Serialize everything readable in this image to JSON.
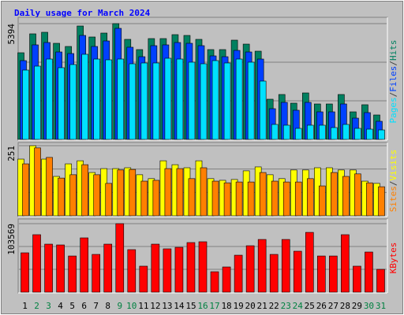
{
  "chart_data": [
    {
      "type": "bar",
      "title": "Daily usage for March 2024",
      "legend_separator": "/",
      "ylim": [
        0,
        5394
      ],
      "yticks": [
        5394
      ],
      "series": [
        {
          "name": "Hits",
          "color": "#008060",
          "values": [
            4037,
            4918,
            4991,
            4477,
            4330,
            5284,
            4771,
            4954,
            5394,
            4661,
            4184,
            4697,
            4697,
            4881,
            4844,
            4661,
            4184,
            4184,
            4624,
            4440,
            4110,
            1872,
            2092,
            1688,
            2165,
            1651,
            1651,
            2092,
            1284,
            1615,
            1138
          ]
        },
        {
          "name": "Files",
          "color": "#0040ff",
          "values": [
            3670,
            4404,
            4514,
            4073,
            4000,
            4844,
            4330,
            4587,
            5174,
            4294,
            3853,
            4367,
            4404,
            4514,
            4477,
            4367,
            3890,
            3853,
            4147,
            4073,
            3743,
            1431,
            1725,
            1358,
            1725,
            1284,
            1284,
            1651,
            991,
            1248,
            844
          ]
        },
        {
          "name": "Pages",
          "color": "#00e0ff",
          "values": [
            3229,
            3413,
            3743,
            3340,
            3487,
            3964,
            3743,
            3707,
            3743,
            3523,
            3560,
            3560,
            3780,
            3743,
            3597,
            3523,
            3670,
            3560,
            3743,
            3597,
            2716,
            697,
            661,
            514,
            661,
            661,
            551,
            697,
            514,
            477,
            440
          ]
        }
      ]
    },
    {
      "type": "bar",
      "legend_separator": "/",
      "ylim": [
        0,
        251
      ],
      "yticks": [
        251
      ],
      "series": [
        {
          "name": "Visits",
          "color": "#ffff00",
          "values": [
            203,
            251,
            203,
            141,
            186,
            197,
            155,
            169,
            169,
            172,
            147,
            133,
            197,
            183,
            172,
            197,
            133,
            127,
            130,
            161,
            175,
            147,
            133,
            164,
            164,
            172,
            172,
            164,
            164,
            124,
            116
          ]
        },
        {
          "name": "Sites",
          "color": "#ff8000",
          "values": [
            186,
            243,
            209,
            135,
            147,
            183,
            147,
            116,
            164,
            166,
            124,
            127,
            169,
            169,
            133,
            172,
            124,
            118,
            121,
            121,
            155,
            124,
            121,
            121,
            133,
            107,
            155,
            141,
            150,
            118,
            104
          ]
        }
      ]
    },
    {
      "type": "bar",
      "ylim": [
        0,
        103569
      ],
      "yticks": [
        103569
      ],
      "categories": [
        "1",
        "2",
        "3",
        "4",
        "5",
        "6",
        "7",
        "8",
        "9",
        "10",
        "11",
        "12",
        "13",
        "14",
        "15",
        "16",
        "17",
        "18",
        "19",
        "20",
        "21",
        "22",
        "23",
        "24",
        "25",
        "26",
        "27",
        "28",
        "29",
        "30",
        "31"
      ],
      "category_colors": [
        "#000000",
        "#008040",
        "#008040",
        "#000000",
        "#000000",
        "#000000",
        "#000000",
        "#000000",
        "#008040",
        "#008040",
        "#000000",
        "#000000",
        "#000000",
        "#000000",
        "#000000",
        "#008040",
        "#008040",
        "#000000",
        "#000000",
        "#000000",
        "#000000",
        "#000000",
        "#008040",
        "#008040",
        "#000000",
        "#000000",
        "#000000",
        "#000000",
        "#000000",
        "#008040",
        "#008040"
      ],
      "series": [
        {
          "name": "KBytes",
          "color": "#ff0000",
          "values": [
            59500,
            86900,
            72600,
            71400,
            54700,
            82100,
            57100,
            72600,
            103569,
            64300,
            39300,
            72600,
            65500,
            67800,
            75000,
            76200,
            30900,
            38100,
            55900,
            70200,
            79700,
            57100,
            79700,
            61900,
            90400,
            54700,
            54700,
            86900,
            39300,
            60700,
            34500
          ]
        }
      ]
    }
  ]
}
